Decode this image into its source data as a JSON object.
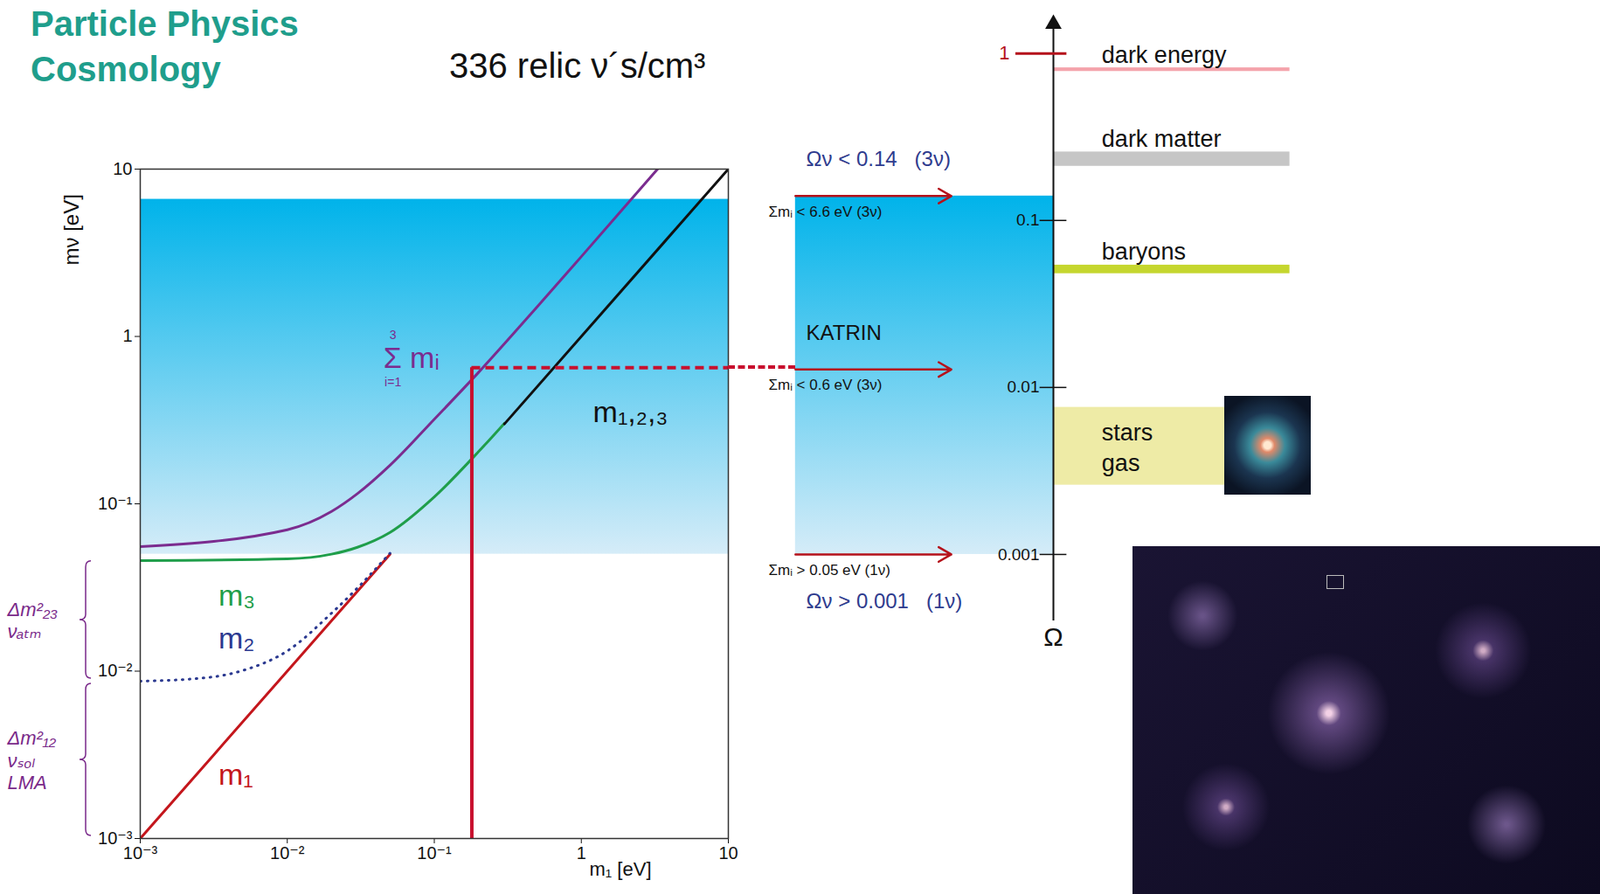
{
  "header": {
    "lines": [
      "Particle Physics",
      "Cosmology"
    ],
    "subtitle": "336 relic ν´s/cm³"
  },
  "chart_data": [
    {
      "type": "line",
      "log": true,
      "xlabel": "m₁ [eV]",
      "ylabel": "mν [eV]",
      "xlim": [
        0.001,
        10
      ],
      "ylim": [
        0.001,
        10
      ],
      "xticks": [
        {
          "value": 0.001,
          "label": "10⁻³"
        },
        {
          "value": 0.01,
          "label": "10⁻²"
        },
        {
          "value": 0.1,
          "label": "10⁻¹"
        },
        1,
        10
      ],
      "yticks": [
        {
          "value": 0.001,
          "label": "10⁻³"
        },
        {
          "value": 0.01,
          "label": "10⁻²"
        },
        {
          "value": 0.1,
          "label": "10⁻¹"
        },
        1,
        10
      ],
      "shaded_range": [
        0.05,
        6.6
      ],
      "series": [
        {
          "name": "m₁",
          "color": "#c4161c",
          "line_style": "solid",
          "x": [
            0.001,
            0.01,
            0.05
          ],
          "values": [
            0.001,
            0.01,
            0.05
          ],
          "label_x": 0.0034,
          "label_y": 0.0024
        },
        {
          "name": "m₂",
          "color": "#2b3990",
          "line_style": "dotted",
          "x": [
            0.001,
            0.003,
            0.005,
            0.01,
            0.02,
            0.03,
            0.05
          ],
          "values": [
            0.0087,
            0.0092,
            0.0101,
            0.0132,
            0.0222,
            0.0314,
            0.0507
          ],
          "label_x": 0.0034,
          "label_y": 0.0155
        },
        {
          "name": "m₃",
          "color": "#1f9e4a",
          "line_style": "solid",
          "x": [
            0.001,
            0.01,
            0.02,
            0.03,
            0.05,
            0.1,
            0.2,
            0.3
          ],
          "values": [
            0.0458,
            0.0469,
            0.05,
            0.055,
            0.0675,
            0.11,
            0.205,
            0.303
          ],
          "label_x": 0.0034,
          "label_y": 0.028
        },
        {
          "name": "m₁,₂,₃",
          "color": "#111111",
          "line_style": "solid",
          "x": [
            0.3,
            10
          ],
          "values": [
            0.3,
            10
          ],
          "label_x": 1.2,
          "label_y": 0.35
        },
        {
          "name": "Σ mᵢ",
          "name_limits": [
            "3",
            "i=1"
          ],
          "color": "#7b2c8f",
          "line_style": "solid",
          "x": [
            0.001,
            0.01,
            0.02,
            0.03,
            0.05,
            0.1,
            0.2,
            0.5,
            1,
            3.3
          ],
          "values": [
            0.0555,
            0.07,
            0.09,
            0.115,
            0.17,
            0.32,
            0.61,
            1.5,
            3,
            10
          ],
          "label_x": 0.045,
          "label_y": 0.74
        }
      ],
      "side_labels": [
        {
          "text": "Δm²₂₃\nνₐₜₘ",
          "range": [
            0.0087,
            0.047
          ]
        },
        {
          "text": "Δm²₁₂\nνₛₒₗ\nLMA",
          "range": [
            0.001,
            0.0087
          ]
        }
      ],
      "katrin": {
        "x": 0.18,
        "y": 0.65,
        "color": "#c8102e"
      }
    },
    {
      "type": "bar",
      "log": "y",
      "ylabel": "Ω",
      "ylim": [
        0.0004,
        1.5
      ],
      "yticks": [
        0.001,
        0.01,
        0.1,
        1
      ],
      "categories": [
        "dark energy",
        "dark matter",
        "baryons",
        "stars\ngas"
      ],
      "ranges": [
        [
          0.78,
          0.82
        ],
        [
          0.211,
          0.257
        ],
        [
          0.048,
          0.054
        ],
        [
          0.0026,
          0.0076
        ]
      ],
      "colors": [
        "#f4a3ab",
        "#c6c6c6",
        "#c5d62e",
        "#eeeba6"
      ],
      "shaded_range": [
        0.001,
        0.14
      ],
      "arrows": [
        {
          "label": "Σmᵢ < 6.6 eV (3ν)",
          "y": 0.14,
          "above": {
            "text": "Ων < 0.14   (3ν)",
            "color": "#2e3b8e"
          }
        },
        {
          "label": "Σmᵢ < 0.6 eV (3ν)",
          "y": 0.0128,
          "above": {
            "text": "KATRIN",
            "color": "#111111"
          }
        },
        {
          "label": "Σmᵢ > 0.05 eV (1ν)",
          "y": 0.001,
          "below": {
            "text": "Ων > 0.001   (1ν)",
            "color": "#2e3b8e"
          }
        }
      ]
    }
  ]
}
